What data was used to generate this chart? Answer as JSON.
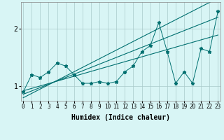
{
  "xlabel": "Humidex (Indice chaleur)",
  "x_values": [
    0,
    1,
    2,
    3,
    4,
    5,
    6,
    7,
    8,
    9,
    10,
    11,
    12,
    13,
    14,
    15,
    16,
    17,
    18,
    19,
    20,
    21,
    22,
    23
  ],
  "y_data": [
    0.9,
    1.2,
    1.15,
    1.25,
    1.4,
    1.35,
    1.2,
    1.05,
    1.05,
    1.08,
    1.05,
    1.08,
    1.25,
    1.35,
    1.6,
    1.7,
    2.1,
    1.6,
    1.05,
    1.25,
    1.05,
    1.65,
    1.6,
    2.3
  ],
  "line_color": "#007070",
  "bg_color": "#d8f5f5",
  "grid_color": "#aacaca",
  "xlim": [
    -0.3,
    23.3
  ],
  "ylim": [
    0.75,
    2.45
  ],
  "yticks": [
    1.0,
    2.0
  ],
  "xticks": [
    0,
    1,
    2,
    3,
    4,
    5,
    6,
    7,
    8,
    9,
    10,
    11,
    12,
    13,
    14,
    15,
    16,
    17,
    18,
    19,
    20,
    21,
    22,
    23
  ],
  "reg_lines": [
    {
      "slope": 0.058,
      "intercept": 0.86
    },
    {
      "slope": 0.075,
      "intercept": 0.8
    },
    {
      "slope": 0.042,
      "intercept": 0.92
    }
  ]
}
